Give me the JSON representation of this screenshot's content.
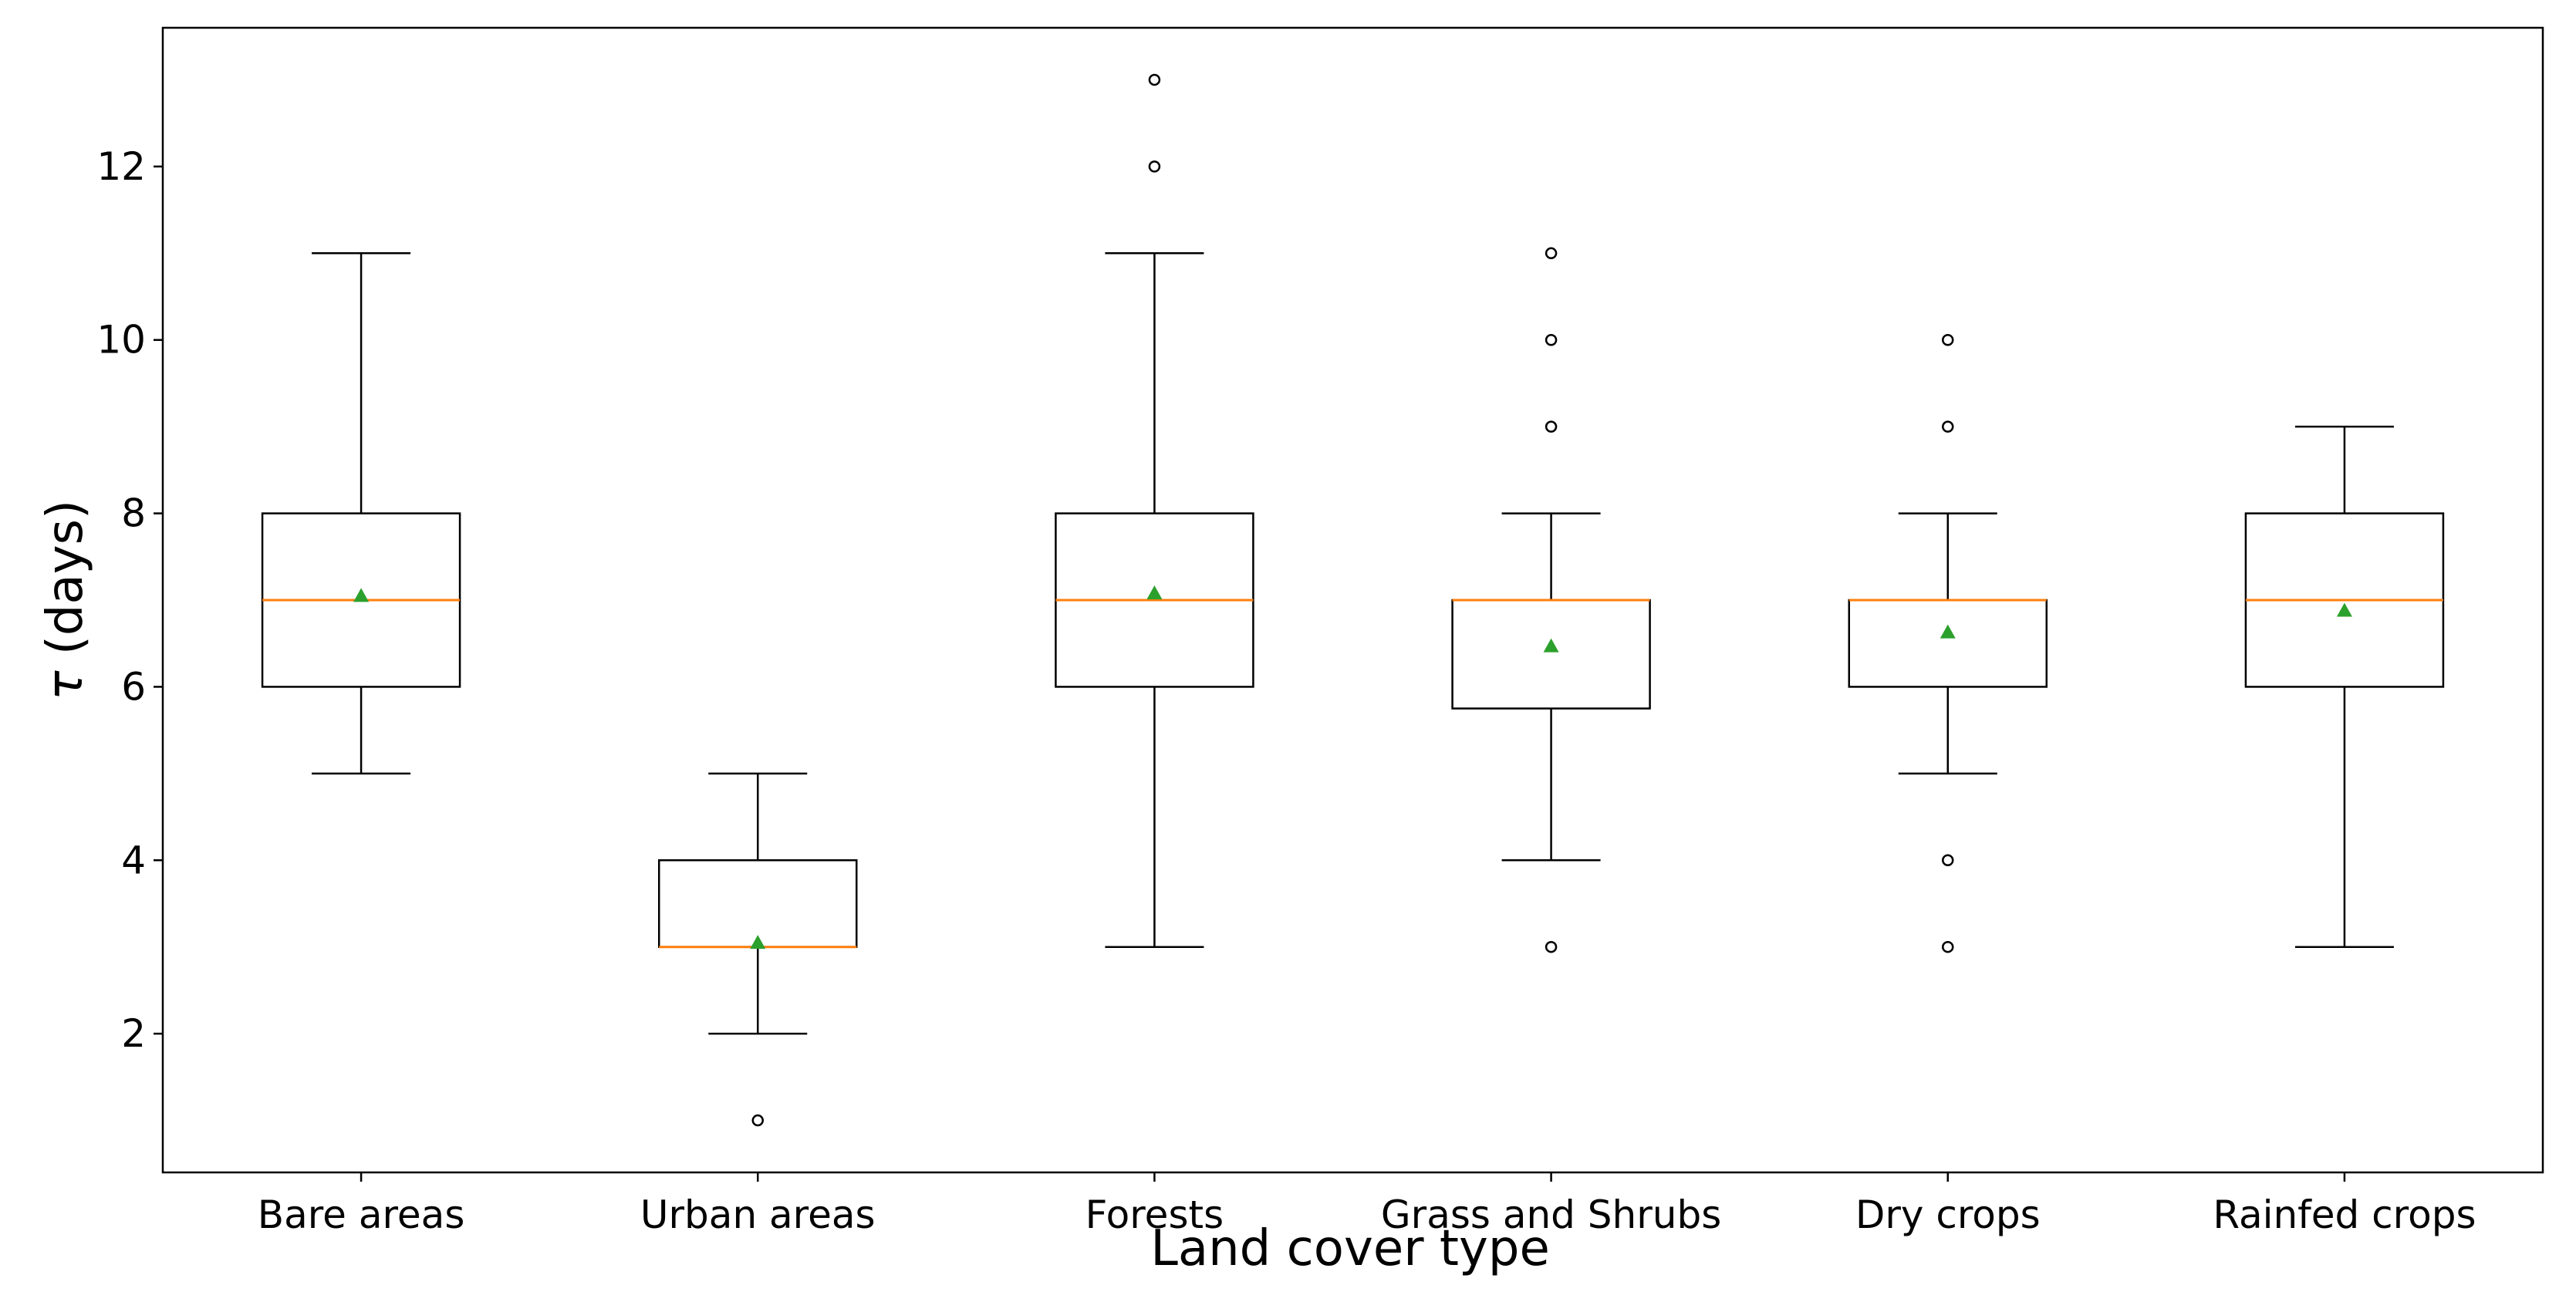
{
  "chart_data": {
    "type": "box",
    "title": "",
    "xlabel": "Land cover type",
    "ylabel_symbol": "τ",
    "ylabel_rest": " (days)",
    "ylim": [
      0.4,
      13.6
    ],
    "yticks": [
      2,
      4,
      6,
      8,
      10,
      12
    ],
    "ytick_labels": [
      "2",
      "4",
      "6",
      "8",
      "10",
      "12"
    ],
    "grid": false,
    "colors": {
      "box": "#000000",
      "median": "#ff7f0e",
      "mean": "#2ca02c",
      "outlier": "#000000"
    },
    "categories": [
      "Bare areas",
      "Urban areas",
      "Forests",
      "Grass and Shrubs",
      "Dry crops",
      "Rainfed crops"
    ],
    "boxes": [
      {
        "name": "Bare areas",
        "whisker_low": 5,
        "q1": 6,
        "median": 7,
        "q3": 8,
        "whisker_high": 11,
        "mean": 7.05,
        "outliers": []
      },
      {
        "name": "Urban areas",
        "whisker_low": 2,
        "q1": 3,
        "median": 3,
        "q3": 4,
        "whisker_high": 5,
        "mean": 3.05,
        "outliers": [
          1
        ]
      },
      {
        "name": "Forests",
        "whisker_low": 3,
        "q1": 6,
        "median": 7,
        "q3": 8,
        "whisker_high": 11,
        "mean": 7.08,
        "outliers": [
          12,
          13
        ]
      },
      {
        "name": "Grass and Shrubs",
        "whisker_low": 4,
        "q1": 5.75,
        "median": 7,
        "q3": 7,
        "whisker_high": 8,
        "mean": 6.47,
        "outliers": [
          3,
          9,
          10,
          11
        ]
      },
      {
        "name": "Dry crops",
        "whisker_low": 5,
        "q1": 6,
        "median": 7,
        "q3": 7,
        "whisker_high": 8,
        "mean": 6.63,
        "outliers": [
          3,
          4,
          9,
          10
        ]
      },
      {
        "name": "Rainfed crops",
        "whisker_low": 3,
        "q1": 6,
        "median": 7,
        "q3": 8,
        "whisker_high": 9,
        "mean": 6.88,
        "outliers": []
      }
    ]
  }
}
